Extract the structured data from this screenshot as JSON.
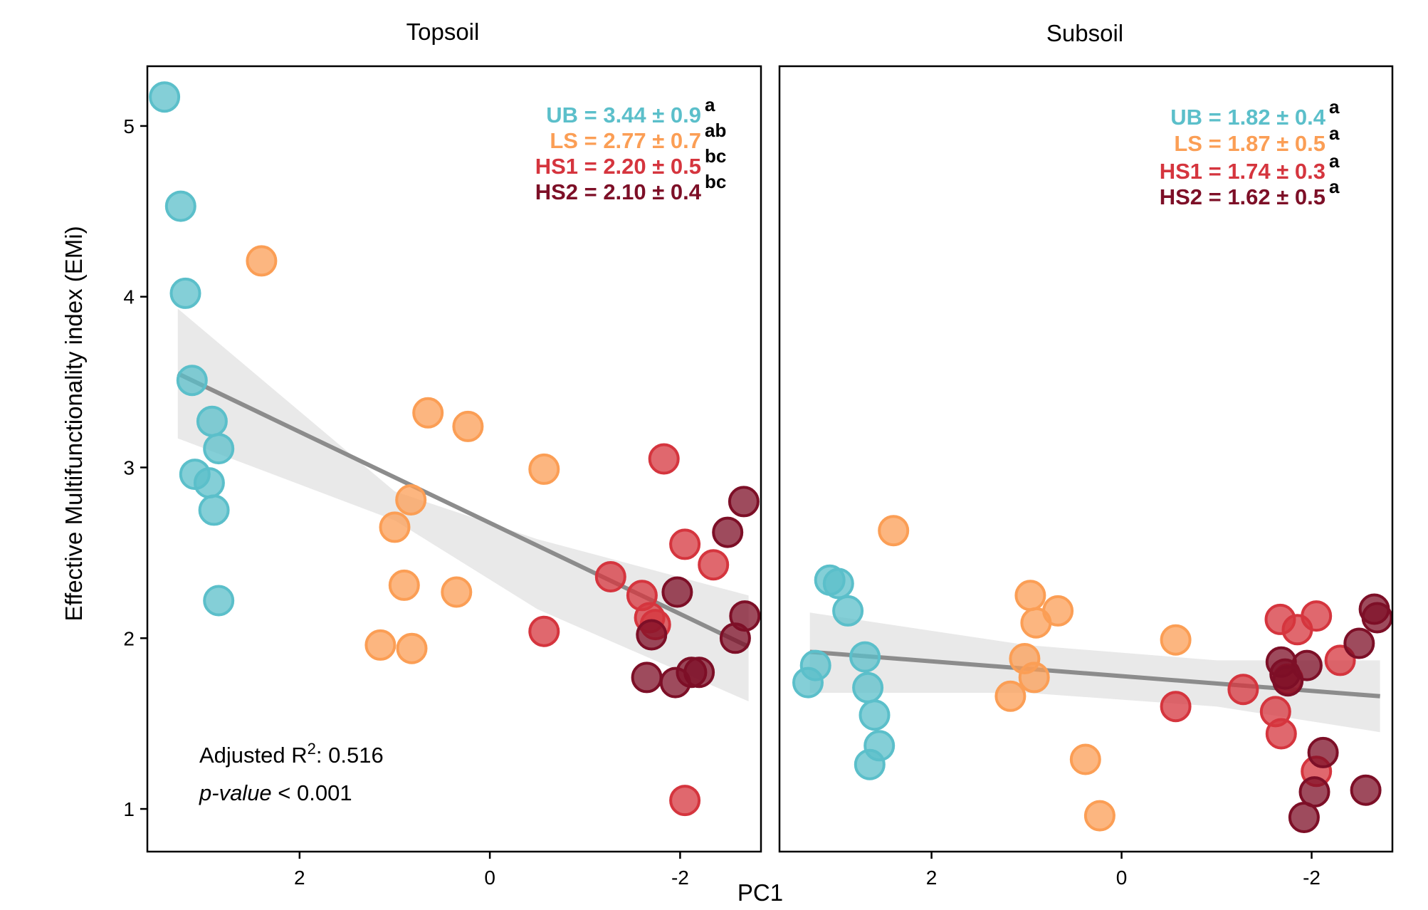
{
  "chart_data": {
    "type": "scatter",
    "xlabel": "PC1",
    "ylabel": "Effective Multifunctionality index (EMi)",
    "x_reversed": true,
    "xlim": [
      3.6,
      -2.85
    ],
    "ylim": [
      0.75,
      5.35
    ],
    "x_ticks": [
      {
        "value": 2,
        "label": "2"
      },
      {
        "value": 0,
        "label": "0"
      },
      {
        "value": -2,
        "label": "-2"
      }
    ],
    "y_ticks": [
      {
        "value": 1,
        "label": "1"
      },
      {
        "value": 2,
        "label": "2"
      },
      {
        "value": 3,
        "label": "3"
      },
      {
        "value": 4,
        "label": "4"
      },
      {
        "value": 5,
        "label": "5"
      }
    ],
    "grid": false,
    "legend": "none",
    "colors": {
      "UB": "#5bbfca",
      "LS": "#fb9e55",
      "HS1": "#d5353e",
      "HS2": "#7d0f27",
      "fit": "#8c8c8c",
      "ribbon": "#e3e3e3"
    },
    "panels": [
      {
        "title": "Topsoil",
        "stats": [
          {
            "group": "UB",
            "text": "UB = 3.44 ± 0.9",
            "letter": "a"
          },
          {
            "group": "LS",
            "text": "LS = 2.77 ± 0.7",
            "letter": "ab"
          },
          {
            "group": "HS1",
            "text": "HS1 = 2.20 ± 0.5",
            "letter": "bc"
          },
          {
            "group": "HS2",
            "text": "HS2 = 2.10 ± 0.4",
            "letter": "bc"
          }
        ],
        "fit": {
          "line": [
            [
              3.28,
              3.55
            ],
            [
              -2.72,
              1.95
            ]
          ],
          "ribbon_upper": [
            [
              3.28,
              3.93
            ],
            [
              1.0,
              2.86
            ],
            [
              -0.5,
              2.58
            ],
            [
              -2.72,
              2.25
            ]
          ],
          "ribbon_lower": [
            [
              3.28,
              3.17
            ],
            [
              1.0,
              2.69
            ],
            [
              -0.5,
              2.17
            ],
            [
              -2.72,
              1.63
            ]
          ],
          "r2_label": "Adjusted R",
          "r2_sup": "2",
          "r2_value": ": 0.516",
          "p_label": "p-value",
          "p_value": " < 0.001"
        },
        "series": [
          {
            "name": "UB",
            "points": [
              [
                3.42,
                5.17
              ],
              [
                3.25,
                4.53
              ],
              [
                3.2,
                4.02
              ],
              [
                3.13,
                3.51
              ],
              [
                2.92,
                3.27
              ],
              [
                2.85,
                3.11
              ],
              [
                3.1,
                2.96
              ],
              [
                2.95,
                2.91
              ],
              [
                2.9,
                2.75
              ],
              [
                2.85,
                2.22
              ]
            ]
          },
          {
            "name": "LS",
            "points": [
              [
                2.4,
                4.21
              ],
              [
                0.65,
                3.32
              ],
              [
                0.23,
                3.24
              ],
              [
                -0.57,
                2.99
              ],
              [
                0.83,
                2.81
              ],
              [
                1.0,
                2.65
              ],
              [
                0.9,
                2.31
              ],
              [
                0.35,
                2.27
              ],
              [
                1.15,
                1.96
              ],
              [
                0.82,
                1.94
              ]
            ]
          },
          {
            "name": "HS1",
            "points": [
              [
                -1.83,
                3.05
              ],
              [
                -2.05,
                2.55
              ],
              [
                -2.35,
                2.43
              ],
              [
                -1.27,
                2.36
              ],
              [
                -1.6,
                2.25
              ],
              [
                -1.68,
                2.12
              ],
              [
                -1.74,
                2.08
              ],
              [
                -0.57,
                2.04
              ],
              [
                -2.05,
                1.05
              ]
            ]
          },
          {
            "name": "HS2",
            "points": [
              [
                -2.67,
                2.8
              ],
              [
                -2.5,
                2.62
              ],
              [
                -1.97,
                2.27
              ],
              [
                -2.68,
                2.13
              ],
              [
                -2.58,
                2.0
              ],
              [
                -1.7,
                2.02
              ],
              [
                -2.12,
                1.8
              ],
              [
                -2.2,
                1.8
              ],
              [
                -1.95,
                1.74
              ],
              [
                -1.65,
                1.77
              ]
            ]
          }
        ]
      },
      {
        "title": "Subsoil",
        "stats": [
          {
            "group": "UB",
            "text": "UB = 1.82 ± 0.4",
            "letter": "a"
          },
          {
            "group": "LS",
            "text": "LS = 1.87 ± 0.5",
            "letter": "a"
          },
          {
            "group": "HS1",
            "text": "HS1 = 1.74 ± 0.3",
            "letter": "a"
          },
          {
            "group": "HS2",
            "text": "HS2 = 1.62 ± 0.5",
            "letter": "a"
          }
        ],
        "fit": {
          "line": [
            [
              3.28,
              1.92
            ],
            [
              -2.72,
              1.66
            ]
          ],
          "ribbon_upper": [
            [
              3.28,
              2.15
            ],
            [
              1.0,
              1.96
            ],
            [
              -1.0,
              1.87
            ],
            [
              -2.72,
              1.87
            ]
          ],
          "ribbon_lower": [
            [
              3.28,
              1.68
            ],
            [
              1.0,
              1.68
            ],
            [
              -1.0,
              1.6
            ],
            [
              -2.72,
              1.45
            ]
          ],
          "r2_label": "",
          "r2_sup": "",
          "r2_value": "",
          "p_label": "",
          "p_value": ""
        },
        "series": [
          {
            "name": "UB",
            "points": [
              [
                3.3,
                1.74
              ],
              [
                3.22,
                1.84
              ],
              [
                3.07,
                2.34
              ],
              [
                2.98,
                2.32
              ],
              [
                2.88,
                2.16
              ],
              [
                2.7,
                1.89
              ],
              [
                2.67,
                1.71
              ],
              [
                2.6,
                1.55
              ],
              [
                2.55,
                1.37
              ],
              [
                2.65,
                1.26
              ]
            ]
          },
          {
            "name": "LS",
            "points": [
              [
                2.4,
                2.63
              ],
              [
                0.96,
                2.25
              ],
              [
                0.9,
                2.09
              ],
              [
                0.67,
                2.16
              ],
              [
                1.02,
                1.88
              ],
              [
                0.92,
                1.77
              ],
              [
                1.17,
                1.66
              ],
              [
                -0.57,
                1.99
              ],
              [
                0.38,
                1.29
              ],
              [
                0.23,
                0.96
              ]
            ]
          },
          {
            "name": "HS1",
            "points": [
              [
                -1.67,
                2.11
              ],
              [
                -1.85,
                2.05
              ],
              [
                -2.05,
                2.13
              ],
              [
                -2.3,
                1.87
              ],
              [
                -1.28,
                1.7
              ],
              [
                -1.62,
                1.57
              ],
              [
                -1.68,
                1.44
              ],
              [
                -0.57,
                1.6
              ],
              [
                -2.05,
                1.22
              ],
              [
                -1.75,
                1.76
              ]
            ]
          },
          {
            "name": "HS2",
            "points": [
              [
                -2.66,
                2.17
              ],
              [
                -2.69,
                2.12
              ],
              [
                -2.5,
                1.97
              ],
              [
                -1.68,
                1.86
              ],
              [
                -1.95,
                1.84
              ],
              [
                -1.72,
                1.79
              ],
              [
                -1.75,
                1.75
              ],
              [
                -2.12,
                1.33
              ],
              [
                -2.03,
                1.1
              ],
              [
                -1.92,
                0.95
              ],
              [
                -2.57,
                1.11
              ]
            ]
          }
        ]
      }
    ]
  }
}
